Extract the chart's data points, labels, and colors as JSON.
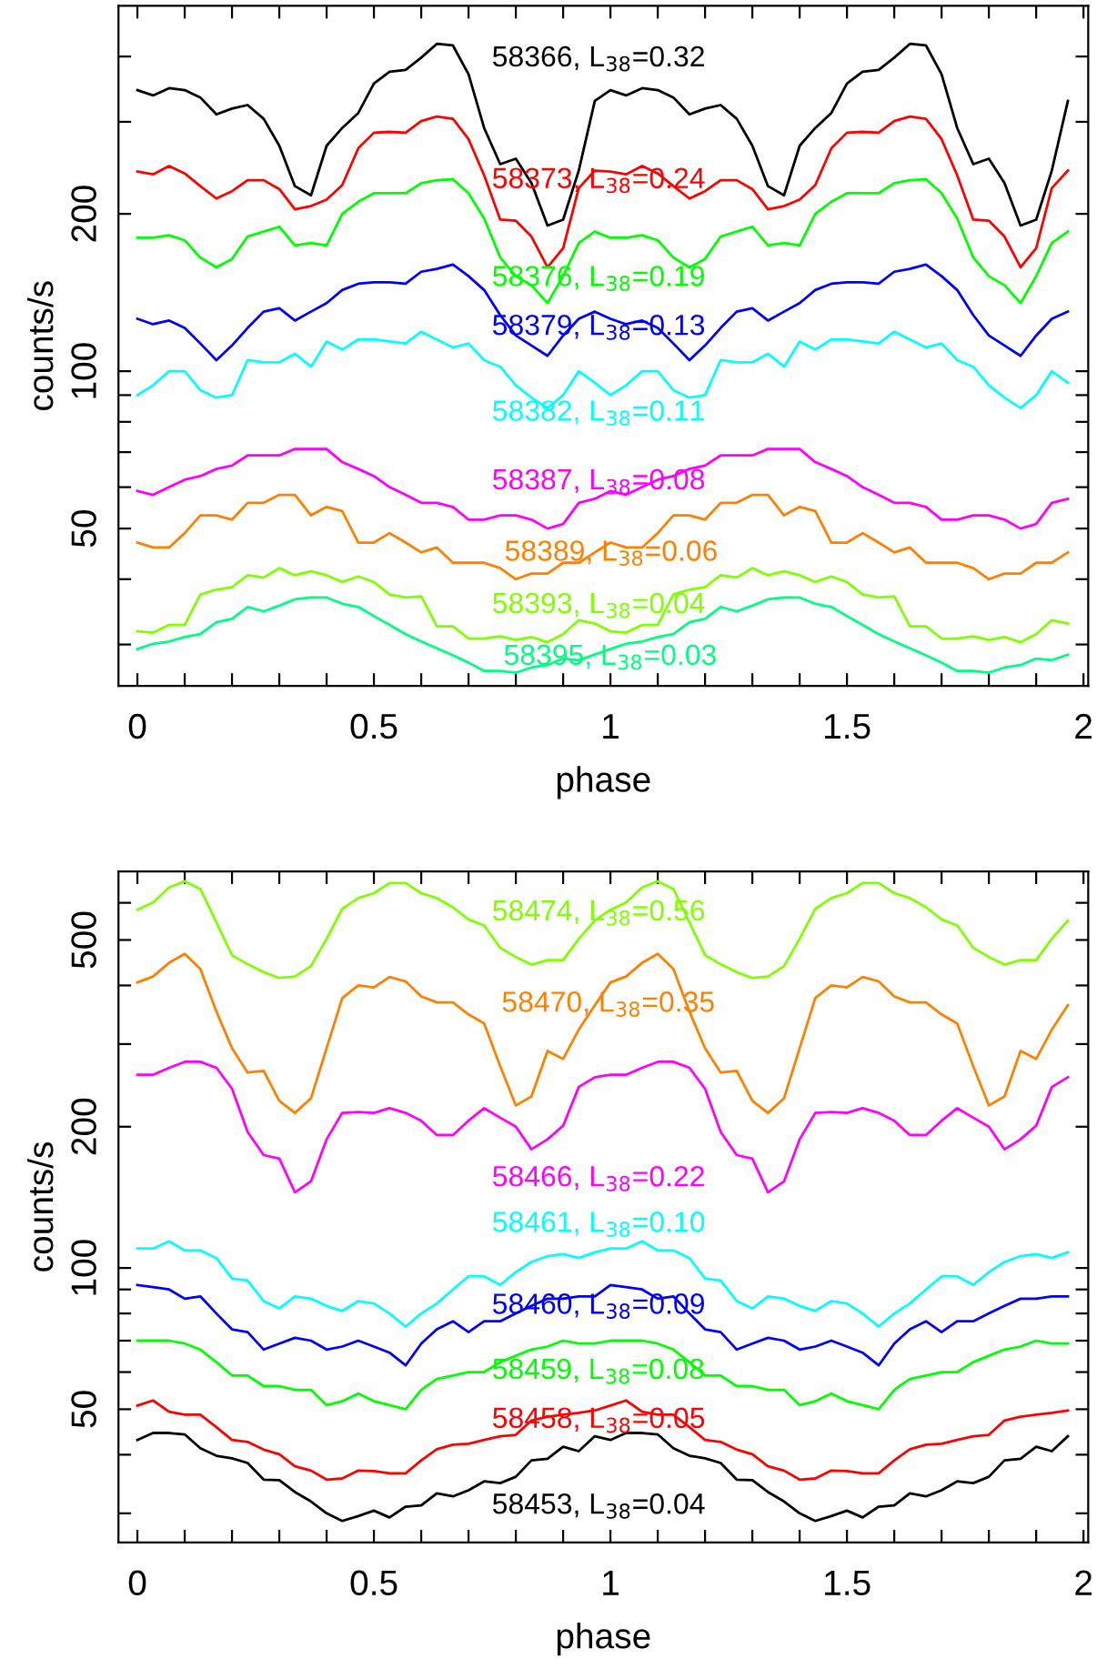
{
  "chart_data": [
    {
      "type": "line",
      "log": "y",
      "xlabel": "phase",
      "ylabel": "counts/s",
      "xlim": [
        -0.04,
        2.01
      ],
      "ylim": [
        25,
        500
      ],
      "xticks": [
        0,
        {
          "value": 0.1,
          "label": null
        },
        {
          "value": 0.2,
          "label": null
        },
        {
          "value": 0.3,
          "label": null
        },
        {
          "value": 0.4,
          "label": null
        },
        0.5,
        {
          "value": 0.6,
          "label": null
        },
        {
          "value": 0.7,
          "label": null
        },
        {
          "value": 0.8,
          "label": null
        },
        {
          "value": 0.9,
          "label": null
        },
        1,
        {
          "value": 1.1,
          "label": null
        },
        {
          "value": 1.2,
          "label": null
        },
        {
          "value": 1.3,
          "label": null
        },
        {
          "value": 1.4,
          "label": null
        },
        1.5,
        {
          "value": 1.6,
          "label": null
        },
        {
          "value": 1.7,
          "label": null
        },
        {
          "value": 1.8,
          "label": null
        },
        {
          "value": 1.9,
          "label": null
        },
        2
      ],
      "yticks": [
        {
          "value": 30,
          "label": null
        },
        {
          "value": 40,
          "label": null
        },
        50,
        {
          "value": 60,
          "label": null
        },
        {
          "value": 70,
          "label": null
        },
        {
          "value": 80,
          "label": null
        },
        {
          "value": 90,
          "label": null
        },
        100,
        200,
        {
          "value": 300,
          "label": null
        },
        {
          "value": 400,
          "label": null
        }
      ],
      "x": [
        0,
        0.033,
        0.067,
        0.1,
        0.133,
        0.167,
        0.2,
        0.233,
        0.267,
        0.3,
        0.333,
        0.367,
        0.4,
        0.433,
        0.467,
        0.5,
        0.533,
        0.567,
        0.6,
        0.633,
        0.667,
        0.7,
        0.733,
        0.767,
        0.8,
        0.833,
        0.867,
        0.9,
        0.933,
        0.967,
        1,
        1.033,
        1.067,
        1.1,
        1.133,
        1.167,
        1.2,
        1.233,
        1.267,
        1.3,
        1.333,
        1.367,
        1.4,
        1.433,
        1.467,
        1.5,
        1.533,
        1.567,
        1.6,
        1.633,
        1.667,
        1.7,
        1.733,
        1.767,
        1.8,
        1.833,
        1.867,
        1.9,
        1.933,
        1.967
      ],
      "series": [
        {
          "color": "#000000",
          "values": [
            345,
            337,
            348,
            345,
            334,
            310,
            318,
            323,
            304,
            270,
            226,
            217,
            270,
            292,
            312,
            355,
            374,
            377,
            398,
            423,
            420,
            370,
            292,
            249,
            255,
            229,
            190,
            195,
            242,
            329,
            345,
            337,
            348,
            345,
            334,
            310,
            318,
            323,
            304,
            270,
            226,
            217,
            270,
            292,
            312,
            355,
            374,
            377,
            398,
            423,
            420,
            370,
            292,
            249,
            255,
            229,
            190,
            195,
            242,
            329
          ]
        },
        {
          "color": "#ff0000",
          "values": [
            241,
            238,
            247,
            239,
            226,
            214,
            221,
            232,
            232,
            223,
            204,
            207,
            213,
            227,
            267,
            286,
            287,
            286,
            301,
            307,
            304,
            278,
            237,
            195,
            194,
            181,
            158,
            172,
            224,
            242,
            241,
            238,
            247,
            239,
            226,
            214,
            221,
            232,
            232,
            223,
            204,
            207,
            213,
            227,
            267,
            286,
            287,
            286,
            301,
            307,
            304,
            278,
            237,
            195,
            194,
            181,
            158,
            172,
            224,
            242
          ]
        },
        {
          "color": "#00ff00",
          "values": [
            180,
            180,
            182,
            178,
            165,
            158,
            164,
            181,
            185,
            189,
            174,
            176,
            174,
            200,
            211,
            219,
            219,
            219,
            229,
            232,
            233,
            219,
            196,
            165,
            152,
            146,
            135,
            152,
            176,
            185,
            180,
            180,
            182,
            178,
            165,
            158,
            164,
            181,
            185,
            189,
            174,
            176,
            174,
            200,
            211,
            219,
            219,
            219,
            229,
            232,
            233,
            219,
            196,
            165,
            152,
            146,
            135,
            152,
            176,
            185
          ]
        },
        {
          "color": "#0000ff",
          "values": [
            126,
            123,
            125,
            121,
            113,
            105,
            112,
            121,
            130,
            132,
            125,
            130,
            135,
            143,
            147,
            148,
            148,
            147,
            155,
            157,
            160,
            152,
            143,
            128,
            117,
            112,
            107,
            117,
            126,
            130,
            126,
            123,
            125,
            121,
            113,
            105,
            112,
            121,
            130,
            132,
            125,
            130,
            135,
            143,
            147,
            148,
            148,
            147,
            155,
            157,
            160,
            152,
            143,
            128,
            117,
            112,
            107,
            117,
            126,
            130
          ]
        },
        {
          "color": "#00ffff",
          "values": [
            90,
            94,
            100,
            100,
            92,
            89,
            90,
            105,
            104,
            104,
            108,
            102,
            114,
            110,
            115,
            115,
            114,
            113,
            119,
            115,
            111,
            113,
            105,
            102,
            94,
            89,
            85,
            90,
            100,
            95,
            90,
            94,
            100,
            100,
            92,
            89,
            90,
            105,
            104,
            104,
            108,
            102,
            114,
            110,
            115,
            115,
            114,
            113,
            119,
            115,
            111,
            113,
            105,
            102,
            94,
            89,
            85,
            90,
            100,
            95
          ]
        },
        {
          "color": "#ff00ff",
          "values": [
            59,
            58,
            60,
            62,
            63,
            65,
            66,
            69,
            69,
            69,
            71,
            71,
            71,
            67,
            65,
            63,
            60,
            58,
            56,
            56,
            55,
            52,
            52,
            53,
            53,
            52,
            50,
            51,
            56,
            57,
            59,
            58,
            60,
            62,
            63,
            65,
            66,
            69,
            69,
            69,
            71,
            71,
            71,
            67,
            65,
            63,
            60,
            58,
            56,
            56,
            55,
            52,
            52,
            53,
            53,
            52,
            50,
            51,
            56,
            57
          ]
        },
        {
          "color": "#ff8000",
          "values": [
            47,
            46,
            46,
            49,
            53,
            53,
            52,
            56,
            56,
            58,
            58,
            53,
            55,
            54,
            47,
            47,
            49,
            47,
            45,
            46,
            43,
            43,
            43,
            42,
            40,
            41,
            41,
            43,
            43,
            45,
            47,
            46,
            46,
            49,
            53,
            53,
            52,
            56,
            56,
            58,
            58,
            53,
            55,
            54,
            47,
            47,
            49,
            47,
            45,
            46,
            43,
            43,
            43,
            42,
            40,
            41,
            41,
            43,
            43,
            45
          ]
        },
        {
          "color": "#80ff00",
          "values": [
            31.8,
            31.6,
            32.7,
            32.7,
            37.4,
            38.2,
            38.6,
            40.7,
            40.3,
            42.0,
            40.7,
            41.4,
            40.7,
            39.5,
            40.5,
            39.5,
            37.4,
            36.9,
            37.1,
            32.5,
            32.5,
            30.8,
            30.8,
            31.1,
            30.6,
            31.0,
            30.3,
            31.4,
            33.4,
            32.9,
            31.8,
            31.6,
            32.7,
            32.7,
            37.4,
            38.2,
            38.6,
            40.7,
            40.3,
            42.0,
            40.7,
            41.4,
            40.7,
            39.5,
            40.5,
            39.5,
            37.4,
            36.9,
            37.1,
            32.5,
            32.5,
            30.8,
            30.8,
            31.1,
            30.6,
            31.0,
            30.3,
            31.4,
            33.4,
            32.9
          ]
        },
        {
          "color": "#00ff80",
          "values": [
            29.4,
            30.1,
            30.4,
            31.0,
            31.4,
            33.1,
            33.6,
            35.4,
            34.7,
            35.6,
            36.6,
            36.9,
            36.9,
            35.9,
            35.4,
            34.0,
            32.7,
            31.4,
            30.4,
            29.5,
            28.6,
            27.7,
            26.7,
            26.7,
            26.5,
            27.1,
            27.4,
            28.2,
            28.0,
            28.7,
            29.4,
            30.1,
            30.4,
            31.0,
            31.4,
            33.1,
            33.6,
            35.4,
            34.7,
            35.6,
            36.6,
            36.9,
            36.9,
            35.9,
            35.4,
            34.0,
            32.7,
            31.4,
            30.4,
            29.5,
            28.6,
            27.7,
            26.7,
            26.7,
            26.5,
            27.1,
            27.4,
            28.2,
            28.0,
            28.7
          ]
        }
      ],
      "annotations": [
        "58366, L$_{38}$=0.32",
        "58373, L$_{38}$=0.24",
        "58376, L$_{38}$=0.19",
        "58379, L$_{38}$=0.13",
        "58382, L$_{38}$=0.11",
        "58387, L$_{38}$=0.08",
        "58389, L$_{38}$=0.06",
        "58393, L$_{38}$=0.04",
        "58395, L$_{38}$=0.03"
      ]
    },
    {
      "type": "line",
      "log": "y",
      "xlabel": "phase",
      "ylabel": "counts/s",
      "xlim": [
        -0.04,
        2.01
      ],
      "ylim": [
        26,
        700
      ],
      "xticks": [
        0,
        {
          "value": 0.1,
          "label": null
        },
        {
          "value": 0.2,
          "label": null
        },
        {
          "value": 0.3,
          "label": null
        },
        {
          "value": 0.4,
          "label": null
        },
        0.5,
        {
          "value": 0.6,
          "label": null
        },
        {
          "value": 0.7,
          "label": null
        },
        {
          "value": 0.8,
          "label": null
        },
        {
          "value": 0.9,
          "label": null
        },
        1,
        {
          "value": 1.1,
          "label": null
        },
        {
          "value": 1.2,
          "label": null
        },
        {
          "value": 1.3,
          "label": null
        },
        {
          "value": 1.4,
          "label": null
        },
        1.5,
        {
          "value": 1.6,
          "label": null
        },
        {
          "value": 1.7,
          "label": null
        },
        {
          "value": 1.8,
          "label": null
        },
        {
          "value": 1.9,
          "label": null
        },
        2
      ],
      "yticks": [
        {
          "value": 30,
          "label": null
        },
        {
          "value": 40,
          "label": null
        },
        50,
        {
          "value": 60,
          "label": null
        },
        {
          "value": 70,
          "label": null
        },
        {
          "value": 80,
          "label": null
        },
        {
          "value": 90,
          "label": null
        },
        100,
        200,
        {
          "value": 300,
          "label": null
        },
        {
          "value": 400,
          "label": null
        },
        500,
        {
          "value": 600,
          "label": null
        }
      ],
      "x": [
        0,
        0.033,
        0.067,
        0.1,
        0.133,
        0.167,
        0.2,
        0.233,
        0.267,
        0.3,
        0.333,
        0.367,
        0.4,
        0.433,
        0.467,
        0.5,
        0.533,
        0.567,
        0.6,
        0.633,
        0.667,
        0.7,
        0.733,
        0.767,
        0.8,
        0.833,
        0.867,
        0.9,
        0.933,
        0.967,
        1,
        1.033,
        1.067,
        1.1,
        1.133,
        1.167,
        1.2,
        1.233,
        1.267,
        1.3,
        1.333,
        1.367,
        1.4,
        1.433,
        1.467,
        1.5,
        1.533,
        1.567,
        1.6,
        1.633,
        1.667,
        1.7,
        1.733,
        1.767,
        1.8,
        1.833,
        1.867,
        1.9,
        1.933,
        1.967
      ],
      "series": [
        {
          "color": "#80ff00",
          "values": [
            580,
            601,
            647,
            667,
            642,
            545,
            464,
            444,
            427,
            415,
            418,
            440,
            503,
            583,
            614,
            629,
            661,
            661,
            629,
            614,
            587,
            553,
            537,
            481,
            460,
            443,
            453,
            453,
            503,
            550,
            580,
            601,
            647,
            667,
            642,
            545,
            464,
            444,
            427,
            415,
            418,
            440,
            503,
            583,
            614,
            629,
            661,
            661,
            629,
            614,
            587,
            553,
            537,
            481,
            460,
            443,
            453,
            453,
            503,
            550
          ]
        },
        {
          "color": "#ff8000",
          "values": [
            406,
            418,
            447,
            467,
            434,
            352,
            294,
            261,
            263,
            227,
            214,
            230,
            294,
            376,
            400,
            396,
            417,
            408,
            379,
            368,
            368,
            347,
            332,
            269,
            222,
            232,
            290,
            279,
            322,
            363,
            406,
            418,
            447,
            467,
            434,
            352,
            294,
            261,
            263,
            227,
            214,
            230,
            294,
            376,
            400,
            396,
            417,
            408,
            379,
            368,
            368,
            347,
            332,
            269,
            222,
            232,
            290,
            279,
            322,
            363
          ]
        },
        {
          "color": "#ff00ff",
          "values": [
            258,
            258,
            267,
            275,
            275,
            267,
            241,
            195,
            174,
            171,
            145,
            153,
            188,
            214,
            215,
            214,
            219,
            214,
            206,
            192,
            192,
            206,
            219,
            209,
            200,
            179,
            188,
            201,
            243,
            255,
            258,
            258,
            267,
            275,
            275,
            267,
            241,
            195,
            174,
            171,
            145,
            153,
            188,
            214,
            215,
            214,
            219,
            214,
            206,
            192,
            192,
            206,
            219,
            209,
            200,
            179,
            188,
            201,
            243,
            255
          ]
        },
        {
          "color": "#00ffff",
          "values": [
            110,
            110,
            114,
            109,
            109,
            105,
            95,
            94,
            85,
            82,
            87,
            86,
            83,
            81,
            85,
            84,
            80,
            75,
            80,
            84,
            90,
            96,
            96,
            92,
            98,
            103,
            106,
            107,
            105,
            108,
            110,
            110,
            114,
            109,
            109,
            105,
            95,
            94,
            85,
            82,
            87,
            86,
            83,
            81,
            85,
            84,
            80,
            75,
            80,
            84,
            90,
            96,
            96,
            92,
            98,
            103,
            106,
            107,
            105,
            108
          ]
        },
        {
          "color": "#0000ff",
          "values": [
            92,
            91,
            90,
            86,
            87,
            80,
            74,
            73,
            67,
            69,
            71,
            70,
            67,
            68,
            70,
            68,
            66,
            62,
            69,
            74,
            77,
            73,
            77,
            77,
            80,
            83,
            86,
            86,
            87,
            87,
            92,
            91,
            90,
            86,
            87,
            80,
            74,
            73,
            67,
            69,
            71,
            70,
            67,
            68,
            70,
            68,
            66,
            62,
            69,
            74,
            77,
            73,
            77,
            77,
            80,
            83,
            86,
            86,
            87,
            87
          ]
        },
        {
          "color": "#00ff00",
          "values": [
            70,
            70,
            70,
            69,
            67,
            63,
            59,
            59,
            56,
            56,
            55,
            55,
            51,
            52,
            54,
            52,
            51,
            50,
            55,
            58,
            59,
            60,
            60,
            63,
            65,
            67,
            68,
            70,
            69,
            69,
            70,
            70,
            70,
            69,
            67,
            63,
            59,
            59,
            56,
            56,
            55,
            55,
            51,
            52,
            54,
            52,
            51,
            50,
            55,
            58,
            59,
            60,
            60,
            63,
            65,
            67,
            68,
            70,
            69,
            69
          ]
        },
        {
          "color": "#ff0000",
          "values": [
            50.9,
            52.2,
            49.4,
            48.7,
            48.7,
            45.8,
            43.0,
            42.6,
            41.0,
            40.1,
            37.8,
            37.0,
            35.4,
            35.6,
            37.0,
            36.9,
            36.5,
            36.5,
            38.9,
            41.1,
            42.0,
            42.2,
            43.0,
            43.8,
            44.1,
            47.3,
            48.2,
            48.7,
            49.1,
            49.7,
            50.9,
            52.2,
            49.4,
            48.7,
            48.7,
            45.8,
            43.0,
            42.6,
            41.0,
            40.1,
            37.8,
            37.0,
            35.4,
            35.6,
            37.0,
            36.9,
            36.5,
            36.5,
            38.9,
            41.1,
            42.0,
            42.2,
            43.0,
            43.8,
            44.1,
            47.3,
            48.2,
            48.7,
            49.1,
            49.7
          ]
        },
        {
          "color": "#000000",
          "values": [
            43.0,
            44.5,
            44.5,
            44.2,
            41.3,
            39.8,
            39.3,
            38.4,
            35.4,
            35.3,
            33.3,
            31.8,
            30.0,
            28.9,
            29.6,
            30.4,
            29.4,
            31.0,
            31.2,
            33.1,
            32.6,
            33.6,
            35.1,
            34.8,
            35.9,
            38.9,
            39.2,
            41.6,
            40.7,
            43.8,
            43.0,
            44.5,
            44.5,
            44.2,
            41.3,
            39.8,
            39.3,
            38.4,
            35.4,
            35.3,
            33.3,
            31.8,
            30.0,
            28.9,
            29.6,
            30.4,
            29.4,
            31.0,
            31.2,
            33.1,
            32.6,
            33.6,
            35.1,
            34.8,
            35.9,
            38.9,
            39.2,
            41.6,
            40.7,
            43.8
          ]
        }
      ],
      "annotations": [
        "58474, L$_{38}$=0.56",
        "58470, L$_{38}$=0.35",
        "58466, L$_{38}$=0.22",
        "58461, L$_{38}$=0.10",
        "58460, L$_{38}$=0.09",
        "58459, L$_{38}$=0.08",
        "58458, L$_{38}$=0.05",
        "58453, L$_{38}$=0.04"
      ]
    }
  ]
}
